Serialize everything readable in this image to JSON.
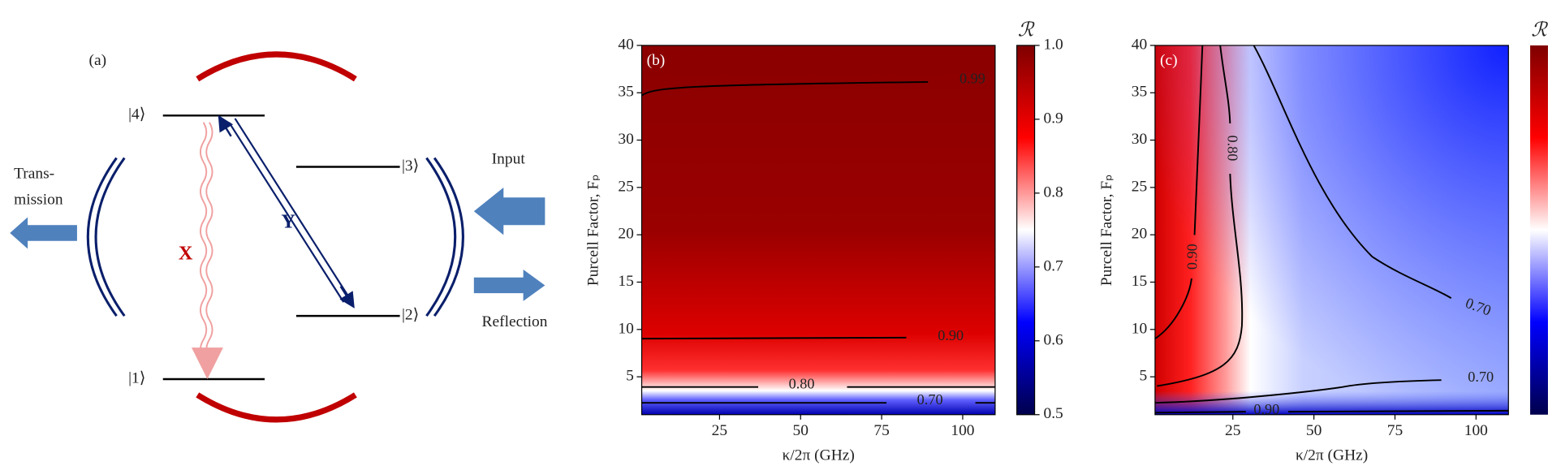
{
  "panel_a": {
    "label": "(a)",
    "states": [
      "|4⟩",
      "|3⟩",
      "|2⟩",
      "|1⟩"
    ],
    "transition_x": "X",
    "transition_y": "Y",
    "transmission": [
      "Trans-",
      "mission"
    ],
    "input": "Input",
    "reflection": "Reflection"
  },
  "chart_data": [
    {
      "type": "heatmap",
      "panel_label": "(b)",
      "x_label": "κ/2π (GHz)",
      "y_label": "Purcell Factor, Fₚ",
      "xlim": [
        1,
        110
      ],
      "xticks": [
        25,
        50,
        75,
        100
      ],
      "ylim": [
        1,
        40
      ],
      "yticks": [
        5,
        10,
        15,
        20,
        25,
        30,
        35,
        40
      ],
      "contour_labels": [
        0.99,
        {
          "value": 0.9,
          "label": "0.90"
        },
        {
          "value": 0.8,
          "label": "0.80"
        },
        {
          "value": 0.7,
          "label": "0.70"
        }
      ],
      "colorbar": {
        "label": "ℛ",
        "lim": [
          0.5,
          1
        ],
        "ticks": [
          0.5,
          0.6,
          0.7,
          0.8,
          0.9,
          {
            "value": 1,
            "label": "1.0"
          }
        ]
      }
    },
    {
      "type": "heatmap",
      "panel_label": "(c)",
      "x_label": "κ/2π (GHz)",
      "y_label": "Purcell Factor, Fₚ",
      "xlim": [
        1,
        110
      ],
      "xticks": [
        25,
        50,
        75,
        100
      ],
      "ylim": [
        1,
        40
      ],
      "yticks": [
        5,
        10,
        15,
        20,
        25,
        30,
        35,
        40
      ],
      "contour_labels": [
        {
          "value": 0.9,
          "label": "0.90"
        },
        {
          "value": 0.8,
          "label": "0.80"
        },
        {
          "value": 0.7,
          "label": "0.70"
        },
        {
          "value": 0.7,
          "label": "0.70"
        },
        {
          "value": 0.9,
          "label": "0.90"
        }
      ],
      "colorbar": {
        "label": "ℛ"
      }
    }
  ]
}
